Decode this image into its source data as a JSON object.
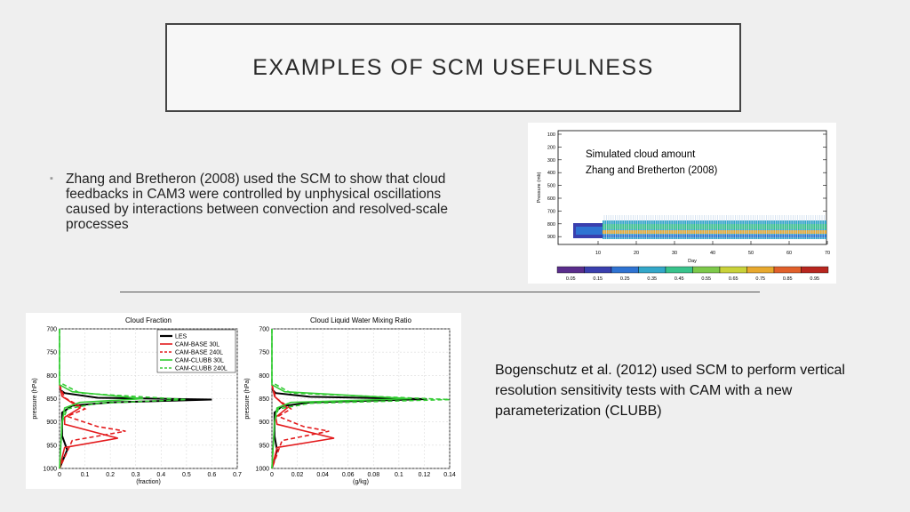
{
  "slide": {
    "title": "EXAMPLES OF SCM USEFULNESS",
    "bullet": "Zhang and Bretheron (2008) used the SCM to show that cloud feedbacks in CAM3 were controlled by unphysical oscillations caused by interactions between convection and resolved-scale processes",
    "caption_bottom": "Bogenschutz et al. (2012) used SCM to perform vertical resolution sensitivity tests with CAM with a new parameterization (CLUBB)"
  },
  "figure_top": {
    "caption_line1": "Simulated cloud amount",
    "caption_line2": "Zhang and Bretherton (2008)",
    "ylabel": "Pressure (mb)",
    "xlabel": "Day",
    "yticks": [
      "100",
      "200",
      "300",
      "400",
      "500",
      "600",
      "700",
      "800",
      "900"
    ],
    "xticks": [
      "10",
      "20",
      "30",
      "40",
      "50",
      "60",
      "70"
    ],
    "colorbar_labels": [
      "0.05",
      "0.15",
      "0.25",
      "0.35",
      "0.45",
      "0.55",
      "0.65",
      "0.75",
      "0.85",
      "0.95"
    ],
    "colorbar_colors": [
      "#5a2d8c",
      "#3a3fae",
      "#2f73d2",
      "#33a7c9",
      "#39c38c",
      "#7dc94a",
      "#c9d23a",
      "#e8a92e",
      "#e1602a",
      "#b8261f"
    ]
  },
  "chart_data": [
    {
      "type": "line",
      "title": "Cloud Fraction",
      "xlabel": "(fraction)",
      "ylabel": "pressure (hPa)",
      "xlim": [
        0,
        0.7
      ],
      "ylim": [
        1000,
        700
      ],
      "xticks": [
        "0",
        "0.1",
        "0.2",
        "0.3",
        "0.4",
        "0.5",
        "0.6",
        "0.7"
      ],
      "yticks": [
        "700",
        "750",
        "800",
        "850",
        "900",
        "950",
        "1000"
      ],
      "legend": [
        "LES",
        "CAM-BASE 30L",
        "CAM-BASE 240L",
        "CAM-CLUBB 30L",
        "CAM-CLUBB 240L"
      ],
      "series": [
        {
          "name": "LES",
          "color": "#000000",
          "dash": "",
          "points": [
            [
              0,
              830
            ],
            [
              0.02,
              838
            ],
            [
              0.15,
              848
            ],
            [
              0.6,
              852
            ],
            [
              0.2,
              858
            ],
            [
              0.05,
              865
            ],
            [
              0.01,
              880
            ],
            [
              0.01,
              930
            ],
            [
              0.03,
              960
            ],
            [
              0,
              1000
            ]
          ]
        },
        {
          "name": "CAM-BASE 30L",
          "color": "#e31a1c",
          "dash": "",
          "points": [
            [
              0,
              820
            ],
            [
              0.01,
              845
            ],
            [
              0.08,
              870
            ],
            [
              0.02,
              890
            ],
            [
              0.02,
              905
            ],
            [
              0.23,
              935
            ],
            [
              0.02,
              955
            ],
            [
              0,
              1000
            ]
          ]
        },
        {
          "name": "CAM-BASE 240L",
          "color": "#e31a1c",
          "dash": "5,3",
          "points": [
            [
              0,
              820
            ],
            [
              0.02,
              848
            ],
            [
              0.1,
              872
            ],
            [
              0.03,
              888
            ],
            [
              0.15,
              910
            ],
            [
              0.26,
              920
            ],
            [
              0.05,
              940
            ],
            [
              0,
              1000
            ]
          ]
        },
        {
          "name": "CAM-CLUBB 30L",
          "color": "#33cc33",
          "dash": "",
          "points": [
            [
              0,
              700
            ],
            [
              0,
              820
            ],
            [
              0.05,
              835
            ],
            [
              0.33,
              850
            ],
            [
              0.08,
              858
            ],
            [
              0.02,
              870
            ],
            [
              0.01,
              900
            ],
            [
              0,
              1000
            ]
          ]
        },
        {
          "name": "CAM-CLUBB 240L",
          "color": "#33cc33",
          "dash": "5,3",
          "points": [
            [
              0,
              700
            ],
            [
              0,
              815
            ],
            [
              0.08,
              838
            ],
            [
              0.5,
              852
            ],
            [
              0.15,
              860
            ],
            [
              0.03,
              872
            ],
            [
              0.01,
              900
            ],
            [
              0,
              1000
            ]
          ]
        }
      ]
    },
    {
      "type": "line",
      "title": "Cloud Liquid Water Mixing Ratio",
      "xlabel": "(g/kg)",
      "ylabel": "pressure (hPa)",
      "xlim": [
        0,
        0.14
      ],
      "ylim": [
        1000,
        700
      ],
      "xticks": [
        "0",
        "0.02",
        "0.04",
        "0.06",
        "0.08",
        "0.1",
        "0.12",
        "0.14"
      ],
      "yticks": [
        "700",
        "750",
        "800",
        "850",
        "900",
        "950",
        "1000"
      ],
      "series": [
        {
          "name": "LES",
          "color": "#000000",
          "dash": "",
          "points": [
            [
              0,
              830
            ],
            [
              0.003,
              838
            ],
            [
              0.03,
              846
            ],
            [
              0.122,
              851
            ],
            [
              0.03,
              858
            ],
            [
              0.008,
              866
            ],
            [
              0.002,
              880
            ],
            [
              0.002,
              930
            ],
            [
              0.004,
              960
            ],
            [
              0,
              1000
            ]
          ]
        },
        {
          "name": "CAM-BASE 30L",
          "color": "#e31a1c",
          "dash": "",
          "points": [
            [
              0,
              820
            ],
            [
              0.002,
              845
            ],
            [
              0.012,
              870
            ],
            [
              0.003,
              890
            ],
            [
              0.004,
              905
            ],
            [
              0.049,
              935
            ],
            [
              0.004,
              955
            ],
            [
              0,
              1000
            ]
          ]
        },
        {
          "name": "CAM-BASE 240L",
          "color": "#e31a1c",
          "dash": "5,3",
          "points": [
            [
              0,
              820
            ],
            [
              0.003,
              848
            ],
            [
              0.015,
              872
            ],
            [
              0.005,
              888
            ],
            [
              0.025,
              910
            ],
            [
              0.045,
              920
            ],
            [
              0.008,
              940
            ],
            [
              0,
              1000
            ]
          ]
        },
        {
          "name": "CAM-CLUBB 30L",
          "color": "#33cc33",
          "dash": "",
          "points": [
            [
              0,
              700
            ],
            [
              0,
              820
            ],
            [
              0.01,
              835
            ],
            [
              0.11,
              850
            ],
            [
              0.015,
              858
            ],
            [
              0.004,
              870
            ],
            [
              0.002,
              900
            ],
            [
              0,
              1000
            ]
          ]
        },
        {
          "name": "CAM-CLUBB 240L",
          "color": "#33cc33",
          "dash": "5,3",
          "points": [
            [
              0,
              700
            ],
            [
              0,
              815
            ],
            [
              0.015,
              838
            ],
            [
              0.14,
              852
            ],
            [
              0.03,
              860
            ],
            [
              0.005,
              872
            ],
            [
              0.002,
              900
            ],
            [
              0,
              1000
            ]
          ]
        }
      ]
    }
  ]
}
